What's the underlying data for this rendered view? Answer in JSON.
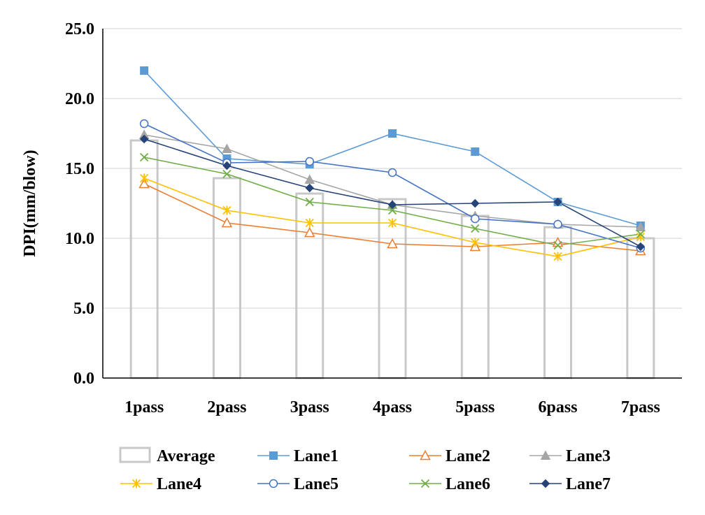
{
  "chart_data": {
    "type": "bar+line",
    "title": "",
    "xlabel": "",
    "ylabel": "DPI(mm/blow)",
    "ylim": [
      0,
      25
    ],
    "yticks": [
      "0.0",
      "5.0",
      "10.0",
      "15.0",
      "20.0",
      "25.0"
    ],
    "ytick_values": [
      0,
      5,
      10,
      15,
      20,
      25
    ],
    "categories": [
      "1pass",
      "2pass",
      "3pass",
      "4pass",
      "5pass",
      "6pass",
      "7pass"
    ],
    "grid": "horizontal",
    "legend_position": "bottom",
    "bar_series": {
      "name": "Average",
      "values": [
        17.0,
        14.3,
        13.2,
        12.8,
        11.6,
        10.8,
        10.0
      ],
      "color": "#c8c8c8"
    },
    "series": [
      {
        "name": "Lane1",
        "marker": "square",
        "color": "#5b9bd5",
        "values": [
          22.0,
          15.7,
          15.3,
          17.5,
          16.2,
          12.6,
          10.9
        ]
      },
      {
        "name": "Lane2",
        "marker": "triangle-open",
        "color": "#ed7d31",
        "values": [
          13.9,
          11.1,
          10.4,
          9.6,
          9.4,
          9.7,
          9.1
        ]
      },
      {
        "name": "Lane3",
        "marker": "triangle",
        "color": "#a5a5a5",
        "values": [
          17.4,
          16.4,
          14.2,
          12.4,
          11.6,
          11.0,
          10.8
        ]
      },
      {
        "name": "Lane4",
        "marker": "asterisk",
        "color": "#ffc000",
        "values": [
          14.3,
          12.0,
          11.1,
          11.1,
          9.7,
          8.7,
          10.1
        ]
      },
      {
        "name": "Lane5",
        "marker": "circle-open",
        "color": "#4472c4",
        "values": [
          18.2,
          15.4,
          15.5,
          14.7,
          11.4,
          11.0,
          9.3
        ]
      },
      {
        "name": "Lane6",
        "marker": "x",
        "color": "#70ad47",
        "values": [
          15.8,
          14.6,
          12.6,
          12.0,
          10.7,
          9.5,
          10.3
        ]
      },
      {
        "name": "Lane7",
        "marker": "diamond",
        "color": "#264478",
        "values": [
          17.1,
          15.2,
          13.6,
          12.4,
          12.5,
          12.6,
          9.4
        ]
      }
    ]
  }
}
